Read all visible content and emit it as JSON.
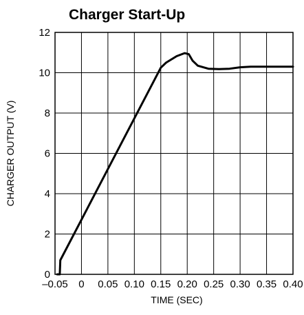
{
  "chart_data": {
    "type": "line",
    "title": "Charger Start-Up",
    "xlabel": "TIME (SEC)",
    "ylabel": "CHARGER OUTPUT (V)",
    "xlim": [
      -0.05,
      0.4
    ],
    "ylim": [
      0,
      12
    ],
    "grid": true,
    "x_ticks": [
      -0.05,
      0,
      0.05,
      0.1,
      0.15,
      0.2,
      0.25,
      0.3,
      0.35,
      0.4
    ],
    "x_tick_labels": [
      "–0.05",
      "0",
      "0.05",
      "0.10",
      "0.15",
      "0.20",
      "0.25",
      "0.30",
      "0.35",
      "0.40"
    ],
    "y_ticks": [
      0,
      2,
      4,
      6,
      8,
      10,
      12
    ],
    "y_tick_labels": [
      "0",
      "2",
      "4",
      "6",
      "8",
      "10",
      "12"
    ],
    "series": [
      {
        "points": [
          [
            -0.046,
            0.0
          ],
          [
            -0.041,
            0.0
          ],
          [
            -0.04,
            0.7
          ],
          [
            0.15,
            10.25
          ],
          [
            0.16,
            10.5
          ],
          [
            0.18,
            10.82
          ],
          [
            0.195,
            10.97
          ],
          [
            0.203,
            10.92
          ],
          [
            0.21,
            10.6
          ],
          [
            0.22,
            10.35
          ],
          [
            0.24,
            10.2
          ],
          [
            0.26,
            10.18
          ],
          [
            0.28,
            10.2
          ],
          [
            0.3,
            10.27
          ],
          [
            0.32,
            10.3
          ],
          [
            0.35,
            10.3
          ],
          [
            0.4,
            10.3
          ]
        ]
      }
    ]
  }
}
